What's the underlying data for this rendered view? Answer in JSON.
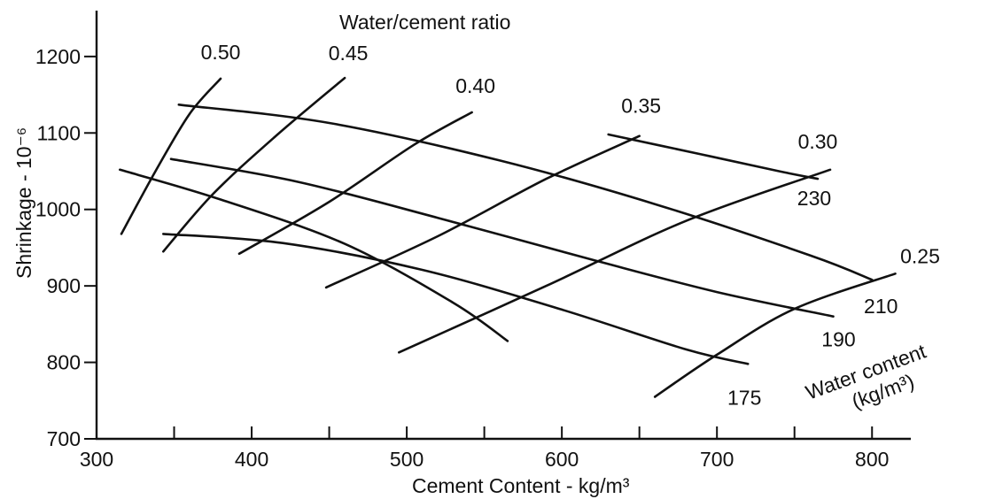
{
  "chart_data": {
    "type": "line",
    "title": "Water/cement ratio",
    "xlabel": "Cement Content - kg/m³",
    "ylabel": "Shrinkage - 10⁻⁶",
    "xlim": [
      300,
      825
    ],
    "ylim": [
      700,
      1260
    ],
    "x_ticks": [
      300,
      400,
      500,
      600,
      700,
      800
    ],
    "y_ticks": [
      700,
      800,
      900,
      1000,
      1100,
      1200
    ],
    "x_tick_labels": [
      "300",
      "400",
      "500",
      "600",
      "700",
      "800"
    ],
    "y_tick_labels": [
      "700",
      "800",
      "900",
      "1000",
      "1100",
      "1200"
    ],
    "grid": false,
    "water_content_title": [
      "Water content",
      "(kg/m³)"
    ],
    "series": [
      {
        "group": "water_cement_ratio",
        "name": "0.50",
        "x": [
          316,
          338,
          360,
          380
        ],
        "y": [
          968,
          1050,
          1125,
          1171
        ]
      },
      {
        "group": "water_cement_ratio",
        "name": "0.45",
        "x": [
          343,
          375,
          415,
          460
        ],
        "y": [
          945,
          1020,
          1095,
          1172
        ]
      },
      {
        "group": "water_cement_ratio",
        "name": "0.40",
        "x": [
          392,
          450,
          505,
          542
        ],
        "y": [
          942,
          1010,
          1085,
          1127
        ]
      },
      {
        "group": "water_cement_ratio",
        "name": "0.35",
        "x": [
          448,
          520,
          590,
          650
        ],
        "y": [
          898,
          965,
          1040,
          1096
        ]
      },
      {
        "group": "water_cement_ratio",
        "name": "0.30",
        "x": [
          495,
          590,
          680,
          773
        ],
        "y": [
          813,
          900,
          985,
          1052
        ]
      },
      {
        "group": "water_cement_ratio",
        "name": "0.25",
        "x": [
          660,
          700,
          750,
          815
        ],
        "y": [
          755,
          810,
          870,
          916
        ]
      },
      {
        "group": "water_content",
        "name": "230",
        "x": [
          630,
          690,
          740,
          765
        ],
        "y": [
          1098,
          1072,
          1050,
          1040
        ]
      },
      {
        "group": "water_content",
        "name": "210",
        "x": [
          353,
          450,
          560,
          660,
          760,
          800
        ],
        "y": [
          1137,
          1113,
          1064,
          1007,
          940,
          908
        ]
      },
      {
        "group": "water_content",
        "name": "190",
        "x": [
          348,
          430,
          520,
          620,
          700,
          775
        ],
        "y": [
          1066,
          1036,
          989,
          934,
          892,
          860
        ]
      },
      {
        "group": "water_content",
        "name": "175",
        "x": [
          343,
          420,
          510,
          600,
          680,
          720
        ],
        "y": [
          968,
          956,
          921,
          869,
          817,
          798
        ]
      },
      {
        "group": "water_content",
        "name": "",
        "x": [
          315,
          380,
          460,
          530,
          565
        ],
        "y": [
          1052,
          1013,
          955,
          878,
          828
        ]
      }
    ]
  }
}
